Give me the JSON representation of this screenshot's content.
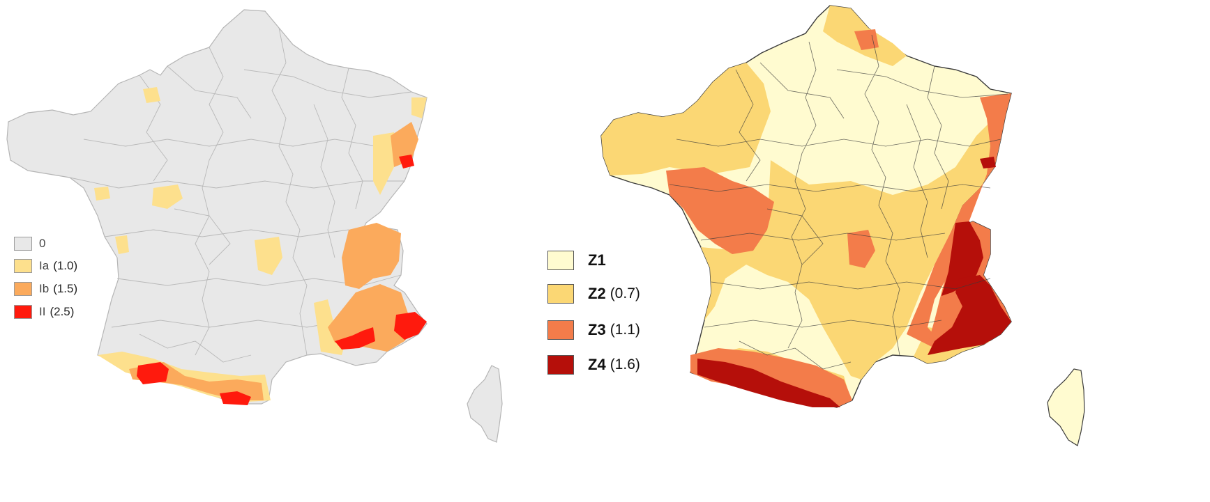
{
  "left_map": {
    "legend": [
      {
        "code": "0",
        "value": "",
        "color": "#e8e8e8"
      },
      {
        "code": "Ia",
        "value": "(1.0)",
        "color": "#fde08d"
      },
      {
        "code": "Ib",
        "value": "(1.5)",
        "color": "#fbaa5c"
      },
      {
        "code": "II",
        "value": "(2.5)",
        "color": "#ff1a0d"
      }
    ]
  },
  "right_map": {
    "legend": [
      {
        "code": "Z1",
        "value": "",
        "color": "#fffbd0"
      },
      {
        "code": "Z2",
        "value": "(0.7)",
        "color": "#fbd774"
      },
      {
        "code": "Z3",
        "value": "(1.1)",
        "color": "#f37c4a"
      },
      {
        "code": "Z4",
        "value": "(1.6)",
        "color": "#b50f0a"
      }
    ]
  },
  "colors": {
    "border": "#9aa0a6",
    "outline_dark": "#3a3a3a"
  }
}
